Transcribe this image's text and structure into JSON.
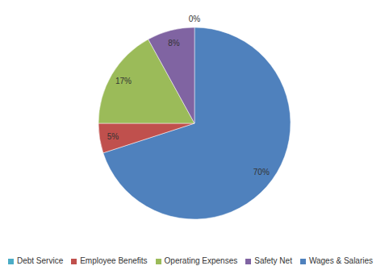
{
  "chart_data": {
    "type": "pie",
    "categories": [
      "Wages & Salaries",
      "Employee Benefits",
      "Operating Expenses",
      "Safety Net",
      "Debt Service"
    ],
    "values": [
      70,
      5,
      17,
      8,
      0
    ],
    "value_labels": [
      "70%",
      "5%",
      "17%",
      "8%",
      "0%"
    ],
    "colors": [
      "#4f81bd",
      "#c0504d",
      "#9bbb59",
      "#8064a2",
      "#4bacc6"
    ],
    "data_labels": true,
    "legend": "bottom"
  }
}
